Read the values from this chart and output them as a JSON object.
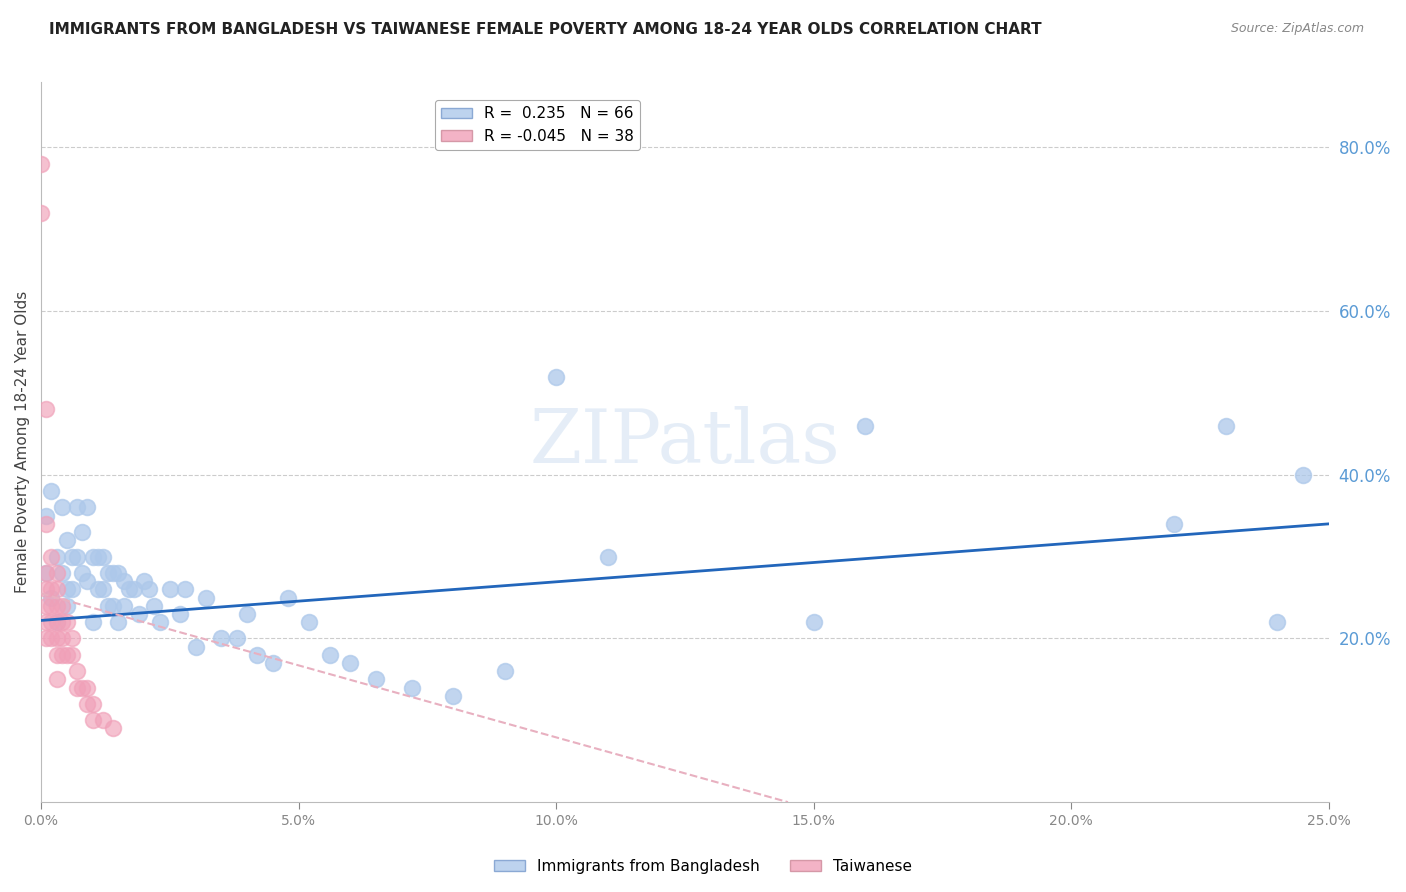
{
  "title": "IMMIGRANTS FROM BANGLADESH VS TAIWANESE FEMALE POVERTY AMONG 18-24 YEAR OLDS CORRELATION CHART",
  "source": "Source: ZipAtlas.com",
  "ylabel": "Female Poverty Among 18-24 Year Olds",
  "xlim": [
    0.0,
    0.25
  ],
  "ylim": [
    0.0,
    0.88
  ],
  "xticks": [
    0.0,
    0.05,
    0.1,
    0.15,
    0.2,
    0.25
  ],
  "yticks_right": [
    0.2,
    0.4,
    0.6,
    0.8
  ],
  "ytick_labels_right": [
    "20.0%",
    "40.0%",
    "60.0%",
    "80.0%"
  ],
  "xtick_labels": [
    "0.0%",
    "5.0%",
    "10.0%",
    "15.0%",
    "20.0%",
    "25.0%"
  ],
  "watermark": "ZIPatlas",
  "blue_series_label": "Immigrants from Bangladesh",
  "pink_series_label": "Taiwanese",
  "blue_color": "#adc8ea",
  "pink_color": "#f0a0b8",
  "blue_line_color": "#2266bb",
  "pink_line_color": "#e8b0c0",
  "legend_blue_label": "R =  0.235   N = 66",
  "legend_pink_label": "R = -0.045   N = 38",
  "background_color": "#ffffff",
  "grid_color": "#cccccc",
  "title_color": "#222222",
  "right_axis_label_color": "#5b9bd5",
  "title_fontsize": 11,
  "axis_label_fontsize": 11,
  "tick_fontsize": 10,
  "blue_scatter_x": [
    0.001,
    0.001,
    0.002,
    0.002,
    0.003,
    0.003,
    0.004,
    0.004,
    0.005,
    0.005,
    0.005,
    0.006,
    0.006,
    0.007,
    0.007,
    0.008,
    0.008,
    0.009,
    0.009,
    0.01,
    0.01,
    0.011,
    0.011,
    0.012,
    0.012,
    0.013,
    0.013,
    0.014,
    0.014,
    0.015,
    0.015,
    0.016,
    0.016,
    0.017,
    0.018,
    0.019,
    0.02,
    0.021,
    0.022,
    0.023,
    0.025,
    0.027,
    0.028,
    0.03,
    0.032,
    0.035,
    0.038,
    0.04,
    0.042,
    0.045,
    0.048,
    0.052,
    0.056,
    0.06,
    0.065,
    0.072,
    0.08,
    0.09,
    0.1,
    0.11,
    0.15,
    0.16,
    0.22,
    0.23,
    0.24,
    0.245
  ],
  "blue_scatter_y": [
    0.35,
    0.28,
    0.38,
    0.25,
    0.3,
    0.22,
    0.36,
    0.28,
    0.32,
    0.26,
    0.24,
    0.3,
    0.26,
    0.36,
    0.3,
    0.33,
    0.28,
    0.36,
    0.27,
    0.3,
    0.22,
    0.3,
    0.26,
    0.3,
    0.26,
    0.28,
    0.24,
    0.28,
    0.24,
    0.28,
    0.22,
    0.27,
    0.24,
    0.26,
    0.26,
    0.23,
    0.27,
    0.26,
    0.24,
    0.22,
    0.26,
    0.23,
    0.26,
    0.19,
    0.25,
    0.2,
    0.2,
    0.23,
    0.18,
    0.17,
    0.25,
    0.22,
    0.18,
    0.17,
    0.15,
    0.14,
    0.13,
    0.16,
    0.52,
    0.3,
    0.22,
    0.46,
    0.34,
    0.46,
    0.22,
    0.4
  ],
  "pink_scatter_x": [
    0.0,
    0.0,
    0.001,
    0.001,
    0.001,
    0.001,
    0.001,
    0.001,
    0.001,
    0.002,
    0.002,
    0.002,
    0.002,
    0.002,
    0.003,
    0.003,
    0.003,
    0.003,
    0.003,
    0.003,
    0.003,
    0.004,
    0.004,
    0.004,
    0.004,
    0.005,
    0.005,
    0.006,
    0.006,
    0.007,
    0.007,
    0.008,
    0.009,
    0.009,
    0.01,
    0.01,
    0.012,
    0.014
  ],
  "pink_scatter_y": [
    0.78,
    0.72,
    0.48,
    0.34,
    0.28,
    0.26,
    0.24,
    0.22,
    0.2,
    0.3,
    0.26,
    0.24,
    0.22,
    0.2,
    0.28,
    0.26,
    0.24,
    0.22,
    0.2,
    0.18,
    0.15,
    0.24,
    0.22,
    0.2,
    0.18,
    0.22,
    0.18,
    0.2,
    0.18,
    0.16,
    0.14,
    0.14,
    0.14,
    0.12,
    0.12,
    0.1,
    0.1,
    0.09
  ],
  "blue_trendline_x0": 0.0,
  "blue_trendline_y0": 0.222,
  "blue_trendline_x1": 0.25,
  "blue_trendline_y1": 0.34,
  "pink_trendline_x0": 0.0,
  "pink_trendline_y0": 0.255,
  "pink_trendline_x1": 0.145,
  "pink_trendline_y1": 0.0
}
